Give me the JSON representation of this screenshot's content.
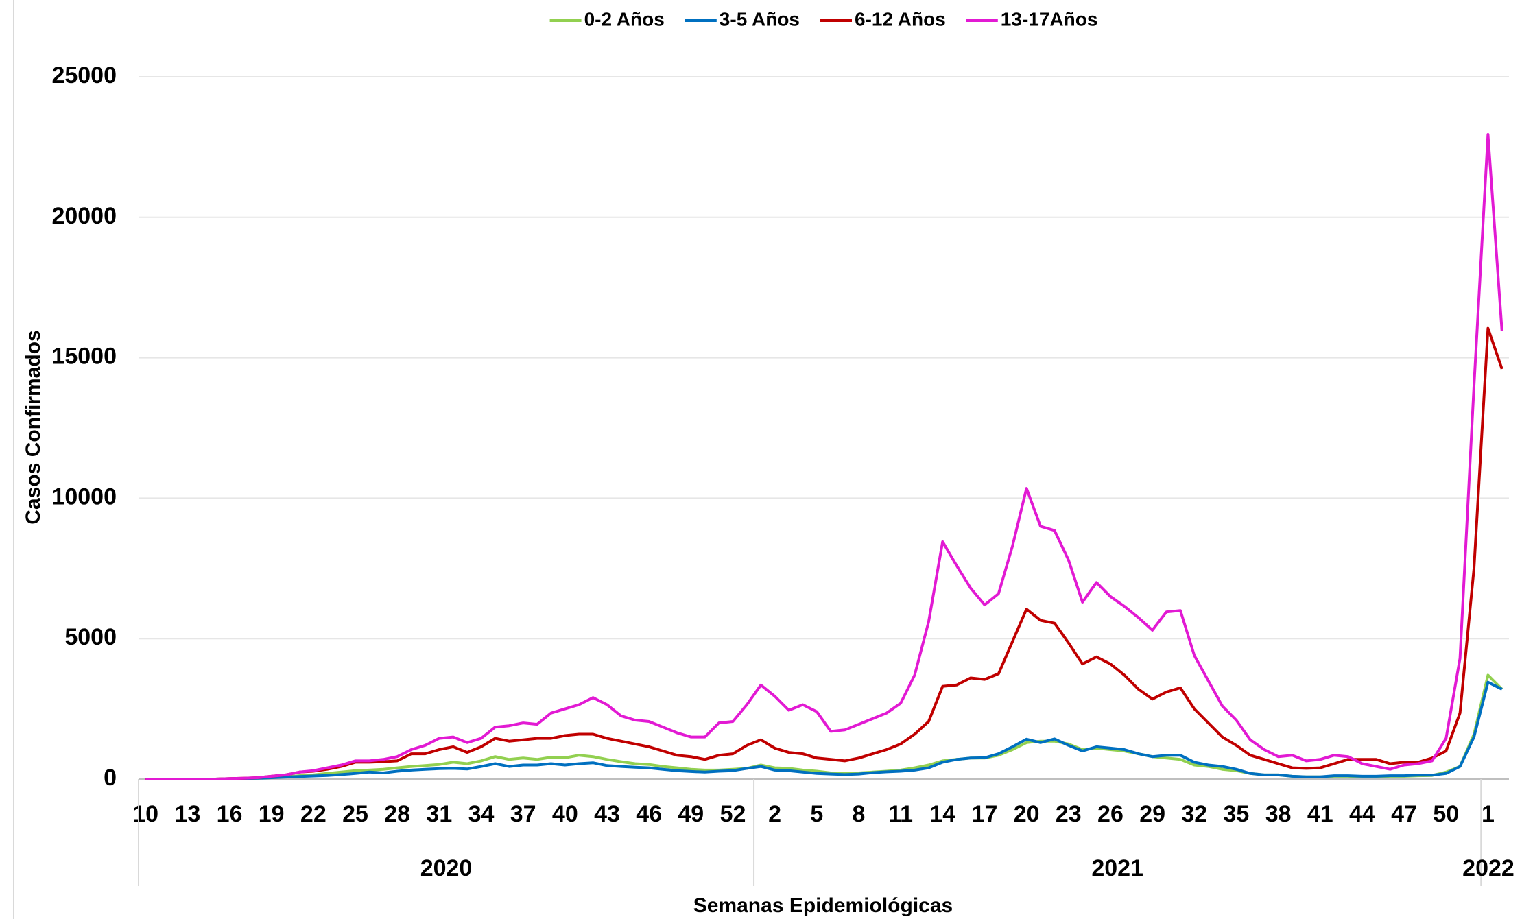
{
  "chart_data": {
    "type": "line",
    "legend_position": "top",
    "y_label": "Casos Confirmados",
    "x_label": "Semanas Epidemiológicas",
    "category_groups": [
      {
        "label": "2020",
        "categories": [
          "10",
          null,
          null,
          "13",
          null,
          null,
          "16",
          null,
          null,
          "19",
          null,
          null,
          "22",
          null,
          null,
          "25",
          null,
          null,
          "28",
          null,
          null,
          "31",
          null,
          null,
          "34",
          null,
          null,
          "37",
          null,
          null,
          "40",
          null,
          null,
          "43",
          null,
          null,
          "46",
          null,
          null,
          "49",
          null,
          null,
          "52",
          null
        ]
      },
      {
        "label": "2021",
        "categories": [
          null,
          "2",
          null,
          null,
          "5",
          null,
          null,
          "8",
          null,
          null,
          "11",
          null,
          null,
          "14",
          null,
          null,
          "17",
          null,
          null,
          "20",
          null,
          null,
          "23",
          null,
          null,
          "26",
          null,
          null,
          "29",
          null,
          null,
          "32",
          null,
          null,
          "35",
          null,
          null,
          "38",
          null,
          null,
          "41",
          null,
          null,
          "44",
          null,
          null,
          "47",
          null,
          null,
          "50",
          null,
          null
        ]
      },
      {
        "label": "2022",
        "categories": [
          "1",
          null
        ]
      }
    ],
    "series": [
      {
        "name": "0-2 Años",
        "color": "#92d050",
        "values": [
          0,
          0,
          0,
          0,
          0,
          0,
          10,
          20,
          30,
          50,
          80,
          120,
          150,
          200,
          250,
          300,
          320,
          350,
          400,
          450,
          480,
          520,
          600,
          550,
          650,
          800,
          700,
          750,
          700,
          780,
          760,
          850,
          800,
          700,
          620,
          550,
          520,
          450,
          400,
          350,
          320,
          320,
          350,
          380,
          500,
          400,
          380,
          320,
          280,
          220,
          200,
          220,
          250,
          280,
          320,
          400,
          500,
          650,
          700,
          750,
          750,
          850,
          1050,
          1300,
          1350,
          1350,
          1250,
          1050,
          1100,
          1050,
          1000,
          900,
          800,
          750,
          700,
          500,
          450,
          350,
          300,
          200,
          150,
          150,
          100,
          80,
          80,
          100,
          100,
          80,
          80,
          100,
          100,
          120,
          130,
          250,
          450,
          1600,
          3700,
          3200
        ]
      },
      {
        "name": "3-5 Años",
        "color": "#0070c0",
        "values": [
          0,
          0,
          0,
          0,
          0,
          0,
          10,
          20,
          30,
          50,
          70,
          90,
          110,
          130,
          160,
          200,
          250,
          220,
          280,
          320,
          350,
          370,
          380,
          360,
          450,
          550,
          450,
          500,
          500,
          550,
          500,
          550,
          580,
          480,
          450,
          420,
          400,
          350,
          300,
          270,
          250,
          280,
          300,
          380,
          450,
          320,
          300,
          250,
          200,
          180,
          160,
          180,
          230,
          260,
          280,
          320,
          400,
          600,
          700,
          750,
          760,
          900,
          1150,
          1420,
          1300,
          1430,
          1200,
          1000,
          1150,
          1100,
          1050,
          900,
          800,
          850,
          850,
          600,
          500,
          450,
          350,
          200,
          150,
          150,
          100,
          80,
          80,
          120,
          120,
          100,
          100,
          120,
          120,
          140,
          140,
          200,
          450,
          1500,
          3450,
          3200
        ]
      },
      {
        "name": "6-12 Años",
        "color": "#c00000",
        "values": [
          0,
          0,
          0,
          0,
          0,
          0,
          20,
          30,
          50,
          100,
          150,
          250,
          280,
          350,
          450,
          600,
          600,
          620,
          650,
          900,
          900,
          1050,
          1150,
          950,
          1150,
          1450,
          1350,
          1400,
          1450,
          1450,
          1550,
          1600,
          1600,
          1450,
          1350,
          1250,
          1150,
          1000,
          850,
          800,
          700,
          850,
          900,
          1200,
          1400,
          1100,
          950,
          900,
          750,
          700,
          650,
          750,
          900,
          1050,
          1250,
          1600,
          2050,
          3300,
          3350,
          3600,
          3550,
          3750,
          4900,
          6050,
          5650,
          5550,
          4850,
          4100,
          4350,
          4100,
          3700,
          3200,
          2850,
          3100,
          3250,
          2500,
          2000,
          1500,
          1200,
          850,
          700,
          550,
          400,
          380,
          400,
          550,
          700,
          700,
          700,
          550,
          600,
          600,
          750,
          1000,
          2350,
          7500,
          16050,
          14600
        ]
      },
      {
        "name": "13-17Años",
        "color": "#e21ad3",
        "values": [
          0,
          0,
          0,
          0,
          0,
          0,
          20,
          30,
          50,
          100,
          150,
          250,
          300,
          400,
          500,
          650,
          650,
          700,
          800,
          1050,
          1200,
          1450,
          1500,
          1300,
          1450,
          1850,
          1900,
          2000,
          1950,
          2350,
          2500,
          2650,
          2900,
          2650,
          2250,
          2100,
          2050,
          1850,
          1650,
          1500,
          1500,
          2000,
          2050,
          2650,
          3350,
          2950,
          2450,
          2650,
          2400,
          1700,
          1750,
          1950,
          2150,
          2350,
          2700,
          3700,
          5600,
          8450,
          7600,
          6800,
          6200,
          6600,
          8300,
          10350,
          9000,
          8850,
          7800,
          6300,
          7000,
          6500,
          6150,
          5750,
          5300,
          5950,
          6000,
          4400,
          3500,
          2600,
          2100,
          1400,
          1050,
          800,
          850,
          650,
          700,
          850,
          800,
          550,
          450,
          350,
          500,
          550,
          650,
          1450,
          4300,
          14000,
          22950,
          15950
        ]
      }
    ],
    "ylim": [
      0,
      25000
    ],
    "yticks": [
      0,
      5000,
      10000,
      15000,
      20000,
      25000
    ],
    "grid": true
  }
}
